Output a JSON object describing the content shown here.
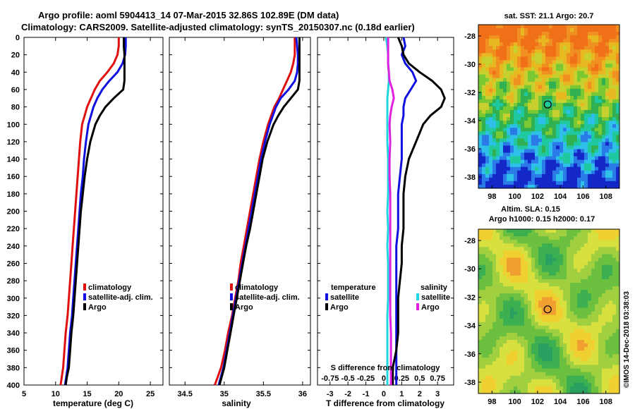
{
  "header": {
    "title_line1": "Argo profile: aoml 5904413_14 07-Mar-2015 32.86S 102.89E (DM data)",
    "title_line2": "Climatology: CARS2009. Satellite-adjusted climatology: synTS_20150307.nc (0.18d earlier)"
  },
  "colors": {
    "climatology": "#e01010",
    "satellite": "#1010e0",
    "argo": "#000000",
    "sat_salinity": "#22d6e0",
    "argo_salinity": "#e020e0"
  },
  "depth_axis": {
    "ticks": [
      0,
      20,
      40,
      60,
      80,
      100,
      120,
      140,
      160,
      180,
      200,
      220,
      240,
      260,
      280,
      300,
      320,
      340,
      360,
      380,
      400
    ],
    "range": [
      0,
      400
    ]
  },
  "chart_data": [
    {
      "type": "line",
      "id": "temperature",
      "xlabel": "temperature (deg C)",
      "xlim": [
        5,
        27
      ],
      "xticks": [
        5,
        10,
        15,
        20,
        25
      ],
      "xtick_labels": [
        "5",
        "10",
        "15",
        "20",
        "25"
      ],
      "legend": [
        "climatology",
        "satellite-adj. clim.",
        "Argo"
      ],
      "series": [
        {
          "name": "climatology",
          "color": "#e01010",
          "x": [
            20.0,
            20.0,
            19.8,
            19.2,
            18.2,
            17.0,
            16.2,
            15.6,
            15.0,
            14.6,
            14.2,
            13.9,
            13.7,
            13.5,
            13.3,
            13.1,
            12.9,
            12.7,
            12.5,
            12.3,
            12.1,
            11.9,
            11.6,
            11.4,
            11.2,
            11.0,
            10.8
          ],
          "y": [
            0,
            10,
            20,
            30,
            40,
            50,
            60,
            70,
            80,
            90,
            100,
            120,
            140,
            160,
            180,
            200,
            220,
            240,
            260,
            280,
            300,
            320,
            340,
            360,
            380,
            390,
            400
          ]
        },
        {
          "name": "satellite-adj. clim.",
          "color": "#1010e0",
          "x": [
            21.1,
            21.1,
            21.0,
            20.6,
            19.8,
            18.5,
            17.4,
            16.6,
            16.0,
            15.6,
            15.2,
            14.8,
            14.5,
            14.3,
            14.0,
            13.8,
            13.6,
            13.4,
            13.2,
            13.0,
            12.8,
            12.6,
            12.3,
            12.1,
            11.9,
            11.7,
            11.5
          ],
          "y": [
            0,
            10,
            20,
            30,
            40,
            50,
            60,
            70,
            80,
            90,
            100,
            120,
            140,
            160,
            180,
            200,
            220,
            240,
            260,
            280,
            300,
            320,
            340,
            360,
            380,
            390,
            400
          ]
        },
        {
          "name": "Argo",
          "color": "#000000",
          "x": [
            20.8,
            20.8,
            20.9,
            20.9,
            20.9,
            20.9,
            20.7,
            19.2,
            17.9,
            17.0,
            16.3,
            15.5,
            15.0,
            14.6,
            14.3,
            14.0,
            13.8,
            13.6,
            13.4,
            13.2,
            13.0,
            12.8,
            12.5,
            12.3,
            12.1,
            11.8,
            11.6
          ],
          "y": [
            0,
            10,
            20,
            30,
            40,
            50,
            60,
            70,
            80,
            90,
            100,
            120,
            140,
            160,
            180,
            200,
            220,
            240,
            260,
            280,
            300,
            320,
            340,
            360,
            380,
            390,
            400
          ]
        }
      ]
    },
    {
      "type": "line",
      "id": "salinity",
      "xlabel": "salinity",
      "xlim": [
        34.3,
        36.1
      ],
      "xticks": [
        34.5,
        35,
        35.5,
        36
      ],
      "xtick_labels": [
        "34.5",
        "35",
        "35.5",
        "36"
      ],
      "legend": [
        "climatology",
        "satellite-adj. clim.",
        "Argo"
      ],
      "series": [
        {
          "name": "climatology",
          "color": "#e01010",
          "x": [
            35.9,
            35.9,
            35.9,
            35.88,
            35.85,
            35.8,
            35.75,
            35.7,
            35.64,
            35.6,
            35.56,
            35.5,
            35.45,
            35.41,
            35.37,
            35.33,
            35.29,
            35.25,
            35.21,
            35.18,
            35.14,
            35.1,
            35.05,
            35.01,
            34.96,
            34.92,
            34.88
          ],
          "y": [
            0,
            10,
            20,
            30,
            40,
            50,
            60,
            70,
            80,
            90,
            100,
            120,
            140,
            160,
            180,
            200,
            220,
            240,
            260,
            280,
            300,
            320,
            340,
            360,
            380,
            390,
            400
          ]
        },
        {
          "name": "satellite-adj. clim.",
          "color": "#1010e0",
          "x": [
            35.92,
            35.93,
            35.94,
            35.94,
            35.93,
            35.9,
            35.82,
            35.72,
            35.66,
            35.62,
            35.58,
            35.52,
            35.47,
            35.43,
            35.39,
            35.35,
            35.31,
            35.27,
            35.23,
            35.19,
            35.15,
            35.11,
            35.07,
            35.03,
            34.99,
            34.96,
            34.93
          ],
          "y": [
            0,
            10,
            20,
            30,
            40,
            50,
            60,
            70,
            80,
            90,
            100,
            120,
            140,
            160,
            180,
            200,
            220,
            240,
            260,
            280,
            300,
            320,
            340,
            360,
            380,
            390,
            400
          ]
        },
        {
          "name": "Argo",
          "color": "#000000",
          "x": [
            35.96,
            35.96,
            35.96,
            35.96,
            35.96,
            35.96,
            35.94,
            35.85,
            35.76,
            35.69,
            35.63,
            35.55,
            35.49,
            35.45,
            35.41,
            35.37,
            35.33,
            35.28,
            35.24,
            35.2,
            35.16,
            35.12,
            35.08,
            35.04,
            35.0,
            34.97,
            34.94
          ],
          "y": [
            0,
            10,
            20,
            30,
            40,
            50,
            60,
            70,
            80,
            90,
            100,
            120,
            140,
            160,
            180,
            200,
            220,
            240,
            260,
            280,
            300,
            320,
            340,
            360,
            380,
            390,
            400
          ]
        }
      ]
    },
    {
      "type": "line",
      "id": "difference",
      "xlabel": "T difference from climatology",
      "xlabel_top": "S difference from climatology",
      "xlim": [
        -3.7,
        3.9
      ],
      "xticks": [
        -3,
        -2,
        -1,
        0,
        1,
        2,
        3
      ],
      "xtick_labels": [
        "-3",
        "-2",
        "-1",
        "0",
        "1",
        "2",
        "3"
      ],
      "s_tick_labels": [
        "-0.75",
        "-0.5",
        "-0.25",
        "0",
        "0.25",
        "0.5",
        "0.75"
      ],
      "legend_temperature": {
        "title": "temperature",
        "items": [
          "satellite",
          "Argo"
        ]
      },
      "legend_salinity": {
        "title": "salinity",
        "items": [
          "satellite",
          "Argo"
        ]
      },
      "series": [
        {
          "name": "T satellite",
          "color": "#1010e0",
          "x": [
            1.1,
            1.2,
            1.0,
            1.2,
            1.6,
            1.8,
            1.5,
            1.2,
            1.1,
            1.1,
            1.0,
            1.0,
            1.0,
            0.9,
            0.8,
            0.8,
            0.8,
            0.7,
            0.7,
            0.7,
            0.7,
            0.7,
            0.7,
            0.7,
            0.7,
            0.7,
            0.7,
            0.7
          ],
          "y": [
            0,
            10,
            20,
            30,
            40,
            50,
            60,
            70,
            80,
            90,
            100,
            120,
            140,
            160,
            180,
            200,
            220,
            240,
            260,
            280,
            300,
            320,
            340,
            360,
            370,
            380,
            390,
            400
          ]
        },
        {
          "name": "T Argo",
          "color": "#000000",
          "x": [
            0.8,
            1.0,
            1.1,
            1.4,
            2.0,
            2.7,
            3.2,
            3.4,
            3.2,
            2.6,
            2.2,
            1.8,
            1.4,
            1.2,
            1.1,
            1.1,
            1.1,
            1.0,
            1.0,
            0.9,
            0.8,
            0.8,
            0.8,
            0.7,
            0.6,
            0.5,
            0.5,
            0.5
          ],
          "y": [
            0,
            10,
            20,
            30,
            40,
            50,
            60,
            70,
            80,
            90,
            100,
            120,
            140,
            160,
            180,
            200,
            220,
            240,
            260,
            280,
            300,
            320,
            340,
            360,
            370,
            380,
            390,
            400
          ]
        },
        {
          "name": "S satellite",
          "color": "#22d6e0",
          "x": [
            0.03,
            0.05,
            0.06,
            0.06,
            0.07,
            0.07,
            0.06,
            0.05,
            0.05,
            0.05,
            0.05,
            0.05,
            0.06,
            0.06,
            0.06,
            0.05,
            0.06,
            0.05,
            0.06,
            0.06,
            0.06,
            0.05,
            0.05,
            0.05,
            0.05,
            0.05,
            0.05,
            0.05
          ],
          "y": [
            0,
            10,
            20,
            30,
            40,
            50,
            60,
            70,
            80,
            90,
            100,
            120,
            140,
            160,
            180,
            200,
            220,
            240,
            260,
            280,
            300,
            320,
            340,
            360,
            370,
            380,
            390,
            400
          ]
        },
        {
          "name": "S Argo",
          "color": "#e020e0",
          "x": [
            0.06,
            0.06,
            0.06,
            0.06,
            0.07,
            0.08,
            0.12,
            0.14,
            0.11,
            0.09,
            0.08,
            0.09,
            0.08,
            0.08,
            0.09,
            0.09,
            0.09,
            0.09,
            0.09,
            0.09,
            0.09,
            0.09,
            0.1,
            0.1,
            0.1,
            0.1,
            0.1,
            0.1
          ],
          "y": [
            0,
            10,
            20,
            30,
            40,
            50,
            60,
            70,
            80,
            90,
            100,
            120,
            140,
            160,
            180,
            200,
            220,
            240,
            260,
            280,
            300,
            320,
            340,
            360,
            370,
            380,
            390,
            400
          ]
        }
      ]
    },
    {
      "type": "heatmap",
      "id": "sst_map",
      "title": "sat. SST: 21.1 Argo: 20.7",
      "xticks": [
        98,
        100,
        102,
        104,
        106,
        108
      ],
      "yticks": [
        -28,
        -30,
        -32,
        -34,
        -36,
        -38
      ],
      "xlim": [
        96.8,
        109.2
      ],
      "ylim": [
        -38.8,
        -27.2
      ],
      "marker": {
        "lon": 102.89,
        "lat": -32.86
      }
    },
    {
      "type": "heatmap",
      "id": "sla_map",
      "title": "Altim. SLA: 0.15",
      "subtitle": "Argo h1000: 0.15 h2000: 0.17",
      "xticks": [
        98,
        100,
        102,
        104,
        106,
        108
      ],
      "yticks": [
        -28,
        -30,
        -32,
        -34,
        -36,
        -38
      ],
      "xlim": [
        96.8,
        109.2
      ],
      "ylim": [
        -38.8,
        -27.2
      ],
      "marker": {
        "lon": 102.89,
        "lat": -32.86
      }
    }
  ],
  "footer": {
    "credit": "©IMOS 14-Dec-2018 03:38:03"
  }
}
